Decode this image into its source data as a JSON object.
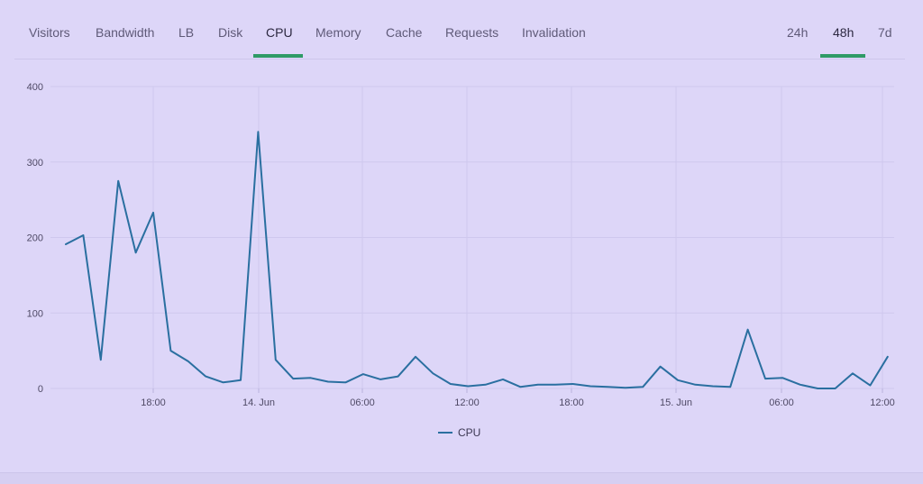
{
  "tabs": {
    "metrics": [
      {
        "label": "Visitors",
        "active": false
      },
      {
        "label": "Bandwidth",
        "active": false
      },
      {
        "label": "LB",
        "active": false
      },
      {
        "label": "Disk",
        "active": false
      },
      {
        "label": "CPU",
        "active": true
      },
      {
        "label": "Memory",
        "active": false
      },
      {
        "label": "Cache",
        "active": false
      },
      {
        "label": "Requests",
        "active": false
      },
      {
        "label": "Invalidation",
        "active": false
      }
    ],
    "ranges": [
      {
        "label": "24h",
        "active": false
      },
      {
        "label": "48h",
        "active": true
      },
      {
        "label": "7d",
        "active": false
      }
    ]
  },
  "colors": {
    "accent": "#2e9a66",
    "series": "#2a6fa0",
    "grid": "#cfc8ee",
    "background": "#ddd6f8"
  },
  "chart_data": {
    "type": "line",
    "x_tick_labels": [
      "18:00",
      "14. Jun",
      "06:00",
      "12:00",
      "18:00",
      "15. Jun",
      "06:00",
      "12:00"
    ],
    "ylim": [
      0,
      400
    ],
    "y_ticks": [
      "0",
      "100",
      "200",
      "300",
      "400"
    ],
    "grid": true,
    "legend_position": "bottom-center",
    "series": [
      {
        "name": "CPU",
        "values": [
          191,
          203,
          38,
          275,
          180,
          233,
          50,
          36,
          16,
          8,
          11,
          340,
          38,
          13,
          14,
          9,
          8,
          19,
          12,
          16,
          42,
          20,
          6,
          3,
          5,
          12,
          2,
          5,
          5,
          6,
          3,
          2,
          1,
          2,
          29,
          11,
          5,
          3,
          2,
          78,
          13,
          14,
          5,
          0,
          0,
          20,
          4,
          42
        ]
      }
    ]
  }
}
